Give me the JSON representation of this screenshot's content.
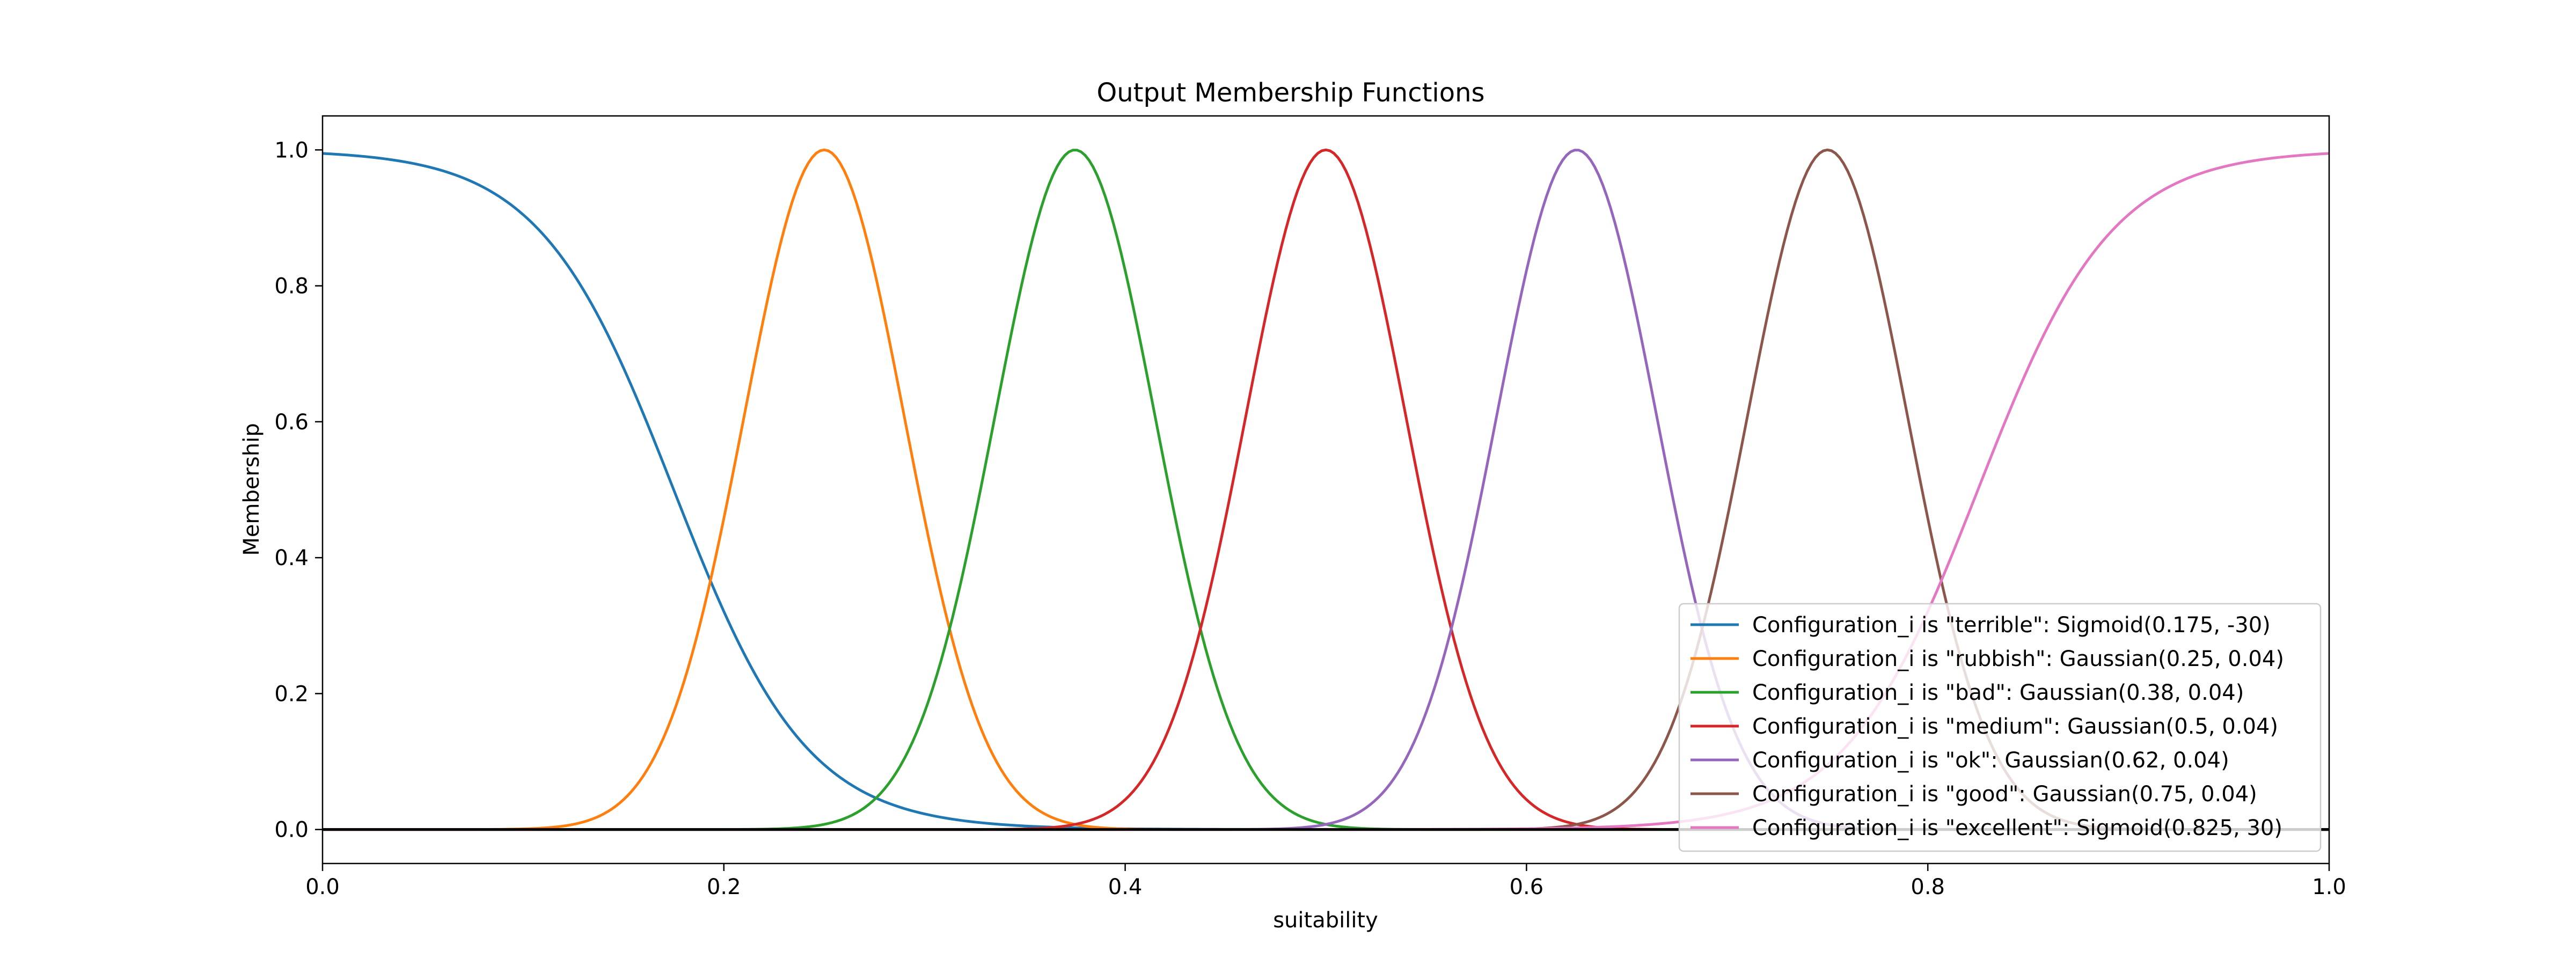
{
  "chart_data": {
    "type": "line",
    "title": "Output Membership Functions",
    "xlabel": "suitability",
    "ylabel": "Membership",
    "xlim": [
      0.0,
      1.0
    ],
    "ylim": [
      -0.05,
      1.05
    ],
    "xticks": [
      "0.0",
      "0.2",
      "0.4",
      "0.6",
      "0.8",
      "1.0"
    ],
    "xtick_values": [
      0.0,
      0.2,
      0.4,
      0.6,
      0.8,
      1.0
    ],
    "yticks": [
      "0.0",
      "0.2",
      "0.4",
      "0.6",
      "0.8",
      "1.0"
    ],
    "ytick_values": [
      0.0,
      0.2,
      0.4,
      0.6,
      0.8,
      1.0
    ],
    "grid": false,
    "legend_position": "bottom-right",
    "series": [
      {
        "name": "Configuration_i is \"terrible\": Sigmoid(0.175, -30)",
        "kind": "sigmoid",
        "params": [
          0.175,
          -30
        ],
        "color": "#1f77b4"
      },
      {
        "name": "Configuration_i is \"rubbish\": Gaussian(0.25, 0.04)",
        "kind": "gaussian",
        "params": [
          0.25,
          0.04
        ],
        "color": "#ff7f0e"
      },
      {
        "name": "Configuration_i is \"bad\": Gaussian(0.38, 0.04)",
        "kind": "gaussian",
        "params": [
          0.375,
          0.04
        ],
        "color": "#2ca02c"
      },
      {
        "name": "Configuration_i is \"medium\": Gaussian(0.5, 0.04)",
        "kind": "gaussian",
        "params": [
          0.5,
          0.04
        ],
        "color": "#d62728"
      },
      {
        "name": "Configuration_i is \"ok\": Gaussian(0.62, 0.04)",
        "kind": "gaussian",
        "params": [
          0.625,
          0.04
        ],
        "color": "#9467bd"
      },
      {
        "name": "Configuration_i is \"good\": Gaussian(0.75, 0.04)",
        "kind": "gaussian",
        "params": [
          0.75,
          0.04
        ],
        "color": "#8c564b"
      },
      {
        "name": "Configuration_i is \"excellent\": Sigmoid(0.825, 30)",
        "kind": "sigmoid",
        "params": [
          0.825,
          30
        ],
        "color": "#e377c2"
      }
    ],
    "baseline_y": 0.0
  }
}
